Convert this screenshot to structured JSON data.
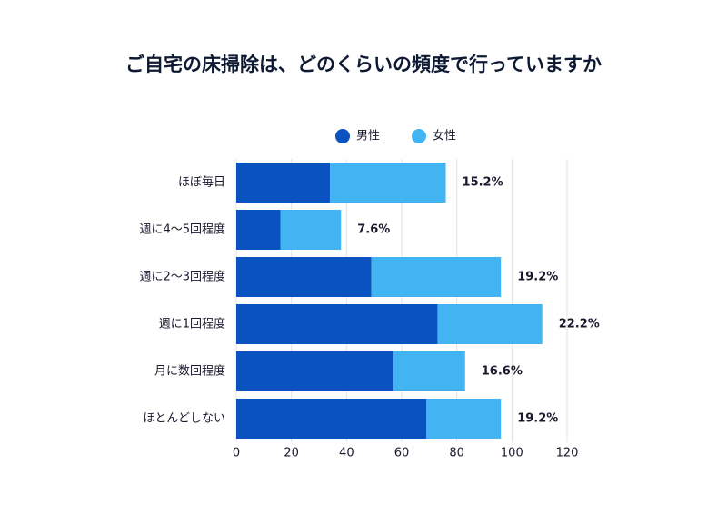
{
  "chart_data": {
    "type": "stacked-barh",
    "title": "ご自宅の床掃除は、どのくらいの頻度で行っていますか",
    "categories": [
      "ほぼ毎日",
      "週に4〜5回程度",
      "週に2〜3回程度",
      "週に1回程度",
      "月に数回程度",
      "ほとんどしない"
    ],
    "series": [
      {
        "name": "男性",
        "color": "#0a52bf",
        "values": [
          34,
          16,
          49,
          73,
          57,
          69
        ]
      },
      {
        "name": "女性",
        "color": "#42b4f2",
        "values": [
          42,
          22,
          47,
          38,
          26,
          27
        ]
      }
    ],
    "totals": {
      "values": [
        15.2,
        7.6,
        19.2,
        22.2,
        16.6,
        19.2
      ],
      "value_labels": [
        "15.2%",
        "7.6%",
        "19.2%",
        "22.2%",
        "16.6%",
        "19.2%"
      ]
    },
    "xlim": [
      0,
      120
    ],
    "xticks": [
      0,
      20,
      40,
      60,
      80,
      100,
      120
    ],
    "grid": true,
    "legend": "top"
  }
}
